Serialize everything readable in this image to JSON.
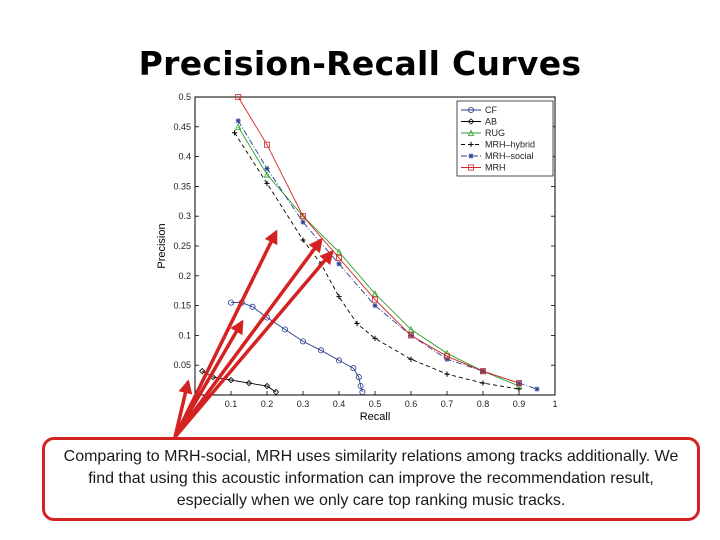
{
  "slide": {
    "title": "Precision-Recall Curves",
    "callout": "Comparing to MRH-social, MRH uses similarity relations among tracks additionally. We find that using this acoustic information can improve the recommendation result, especially when we only care top ranking music tracks."
  },
  "chart_data": {
    "type": "line",
    "xlabel": "Recall",
    "ylabel": "Precision",
    "xlim": [
      0,
      1
    ],
    "ylim": [
      0,
      0.5
    ],
    "xticks": [
      "0.1",
      "0.2",
      "0.3",
      "0.4",
      "0.5",
      "0.6",
      "0.7",
      "0.8",
      "0.9",
      "1"
    ],
    "yticks": [
      "0.05",
      "0.1",
      "0.15",
      "0.2",
      "0.25",
      "0.3",
      "0.35",
      "0.4",
      "0.45",
      "0.5"
    ],
    "legend_position": "top-right",
    "colors": {
      "arrow": "#d42222",
      "border": "#d42222"
    },
    "series": [
      {
        "name": "CF",
        "color": "#2a3f8f",
        "dash": "",
        "marker": "circle",
        "points": [
          [
            0.1,
            0.155
          ],
          [
            0.13,
            0.155
          ],
          [
            0.16,
            0.148
          ],
          [
            0.2,
            0.13
          ],
          [
            0.25,
            0.11
          ],
          [
            0.3,
            0.09
          ],
          [
            0.35,
            0.075
          ],
          [
            0.4,
            0.058
          ],
          [
            0.44,
            0.045
          ],
          [
            0.455,
            0.03
          ],
          [
            0.46,
            0.015
          ],
          [
            0.465,
            0.005
          ]
        ]
      },
      {
        "name": "AB",
        "color": "#000000",
        "dash": "",
        "marker": "diamond",
        "points": [
          [
            0.02,
            0.04
          ],
          [
            0.05,
            0.03
          ],
          [
            0.1,
            0.025
          ],
          [
            0.15,
            0.02
          ],
          [
            0.2,
            0.015
          ],
          [
            0.225,
            0.005
          ]
        ]
      },
      {
        "name": "RUG",
        "color": "#2ca02c",
        "dash": "",
        "marker": "triangle",
        "points": [
          [
            0.12,
            0.45
          ],
          [
            0.2,
            0.37
          ],
          [
            0.3,
            0.3
          ],
          [
            0.4,
            0.24
          ],
          [
            0.5,
            0.17
          ],
          [
            0.6,
            0.11
          ],
          [
            0.7,
            0.07
          ],
          [
            0.8,
            0.04
          ],
          [
            0.9,
            0.015
          ]
        ]
      },
      {
        "name": "MRH–hybrid",
        "color": "#000000",
        "dash": "4,3",
        "marker": "plus",
        "points": [
          [
            0.11,
            0.44
          ],
          [
            0.2,
            0.355
          ],
          [
            0.3,
            0.26
          ],
          [
            0.35,
            0.22
          ],
          [
            0.4,
            0.165
          ],
          [
            0.45,
            0.12
          ],
          [
            0.5,
            0.095
          ],
          [
            0.6,
            0.06
          ],
          [
            0.7,
            0.035
          ],
          [
            0.8,
            0.02
          ],
          [
            0.9,
            0.01
          ]
        ]
      },
      {
        "name": "MRH–social",
        "color": "#2a3f8f",
        "dash": "6,2,1,2",
        "marker": "asterisk",
        "points": [
          [
            0.12,
            0.46
          ],
          [
            0.2,
            0.38
          ],
          [
            0.3,
            0.29
          ],
          [
            0.4,
            0.22
          ],
          [
            0.5,
            0.15
          ],
          [
            0.6,
            0.1
          ],
          [
            0.7,
            0.06
          ],
          [
            0.8,
            0.04
          ],
          [
            0.9,
            0.02
          ],
          [
            0.95,
            0.01
          ]
        ]
      },
      {
        "name": "MRH",
        "color": "#d62728",
        "dash": "",
        "marker": "square",
        "points": [
          [
            0.12,
            0.5
          ],
          [
            0.2,
            0.42
          ],
          [
            0.3,
            0.3
          ],
          [
            0.4,
            0.23
          ],
          [
            0.5,
            0.16
          ],
          [
            0.6,
            0.1
          ],
          [
            0.7,
            0.065
          ],
          [
            0.8,
            0.04
          ],
          [
            0.9,
            0.02
          ]
        ]
      }
    ]
  }
}
